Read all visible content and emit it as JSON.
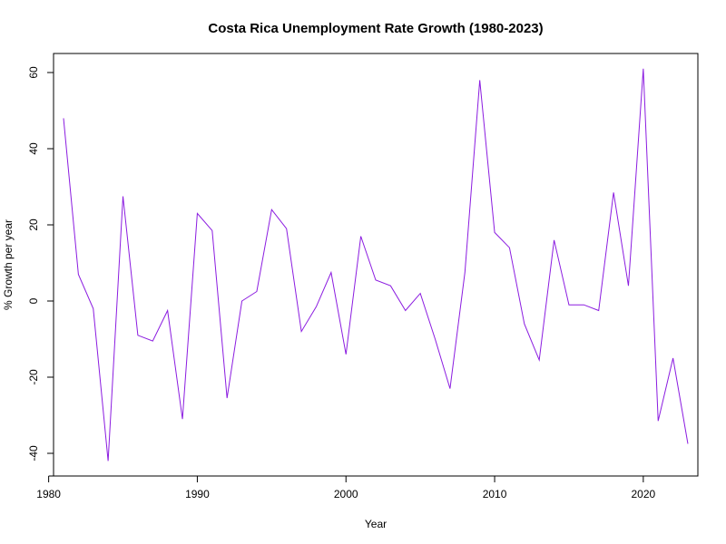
{
  "chart_data": {
    "type": "line",
    "title": "Costa Rica Unemployment Rate Growth (1980-2023)",
    "xlabel": "Year",
    "ylabel": "% Growth per year",
    "xlim": [
      1980,
      2024
    ],
    "ylim": [
      -45,
      65
    ],
    "x_ticks": [
      1980,
      1990,
      2000,
      2010,
      2020
    ],
    "y_ticks": [
      -40,
      -20,
      0,
      20,
      40,
      60
    ],
    "grid": false,
    "line_color": "#8b1ce0",
    "x": [
      1981,
      1982,
      1983,
      1984,
      1985,
      1986,
      1987,
      1988,
      1989,
      1990,
      1991,
      1992,
      1993,
      1994,
      1995,
      1996,
      1997,
      1998,
      1999,
      2000,
      2001,
      2002,
      2003,
      2004,
      2005,
      2006,
      2007,
      2008,
      2009,
      2010,
      2011,
      2012,
      2013,
      2014,
      2015,
      2016,
      2017,
      2018,
      2019,
      2020,
      2021,
      2022,
      2023
    ],
    "values": [
      48,
      7,
      -2,
      -42,
      27.5,
      -9,
      -10.5,
      -2.5,
      -31,
      23,
      18.5,
      -25.5,
      0,
      2.5,
      24,
      19,
      -8,
      -1.5,
      7.5,
      -14,
      17,
      5.5,
      4,
      -2.5,
      2,
      -10,
      -23,
      7.5,
      58,
      18,
      14,
      -6,
      -15.5,
      16,
      -1,
      -1,
      -2.5,
      28.5,
      4,
      61,
      -31.5,
      -15,
      -37.5
    ]
  }
}
